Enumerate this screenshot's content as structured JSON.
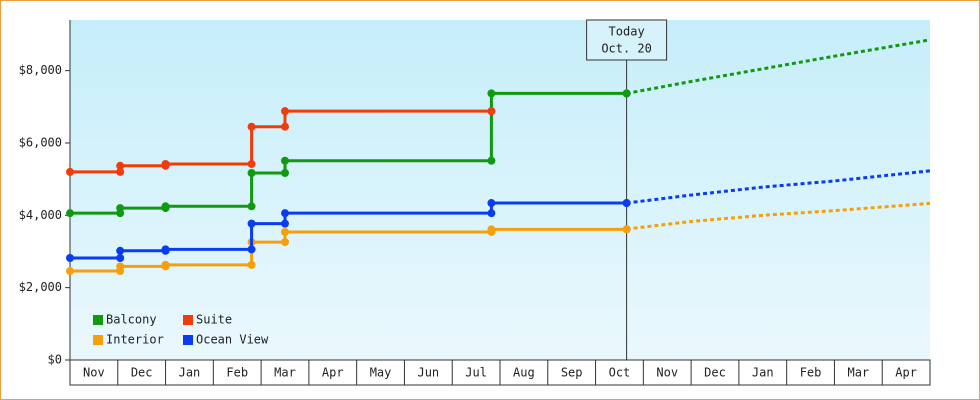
{
  "chart_data": {
    "type": "step",
    "x": [
      0,
      1.05,
      2,
      3.8,
      4.5,
      8.82,
      11.65
    ],
    "series": [
      {
        "name": "Balcony",
        "color": "#119a11",
        "values": [
          4060,
          4200,
          4250,
          5170,
          5510,
          7370,
          7370
        ],
        "projection_values": [
          7370,
          7700,
          8050,
          8400,
          8850
        ]
      },
      {
        "name": "Suite",
        "color": "#f03c0a",
        "values": [
          5200,
          5370,
          5420,
          6450,
          6880,
          6880,
          null
        ]
      },
      {
        "name": "Interior",
        "color": "#f5a00a",
        "values": [
          2460,
          2590,
          2630,
          3260,
          3540,
          3610,
          3620
        ],
        "projection_values": [
          3620,
          3830,
          4000,
          4130,
          4330
        ]
      },
      {
        "name": "Ocean View",
        "color": "#0a3cf0",
        "values": [
          2820,
          3020,
          3060,
          3770,
          4060,
          4340,
          4340
        ],
        "projection_values": [
          4340,
          4560,
          4780,
          4950,
          5230
        ]
      }
    ],
    "projection_x": [
      11.65,
      13,
      14.5,
      16,
      18
    ],
    "xlim": [
      0,
      18
    ],
    "xticks": [
      {
        "value": 0.5,
        "label": "Nov"
      },
      {
        "value": 1.5,
        "label": "Dec"
      },
      {
        "value": 2.5,
        "label": "Jan"
      },
      {
        "value": 3.5,
        "label": "Feb"
      },
      {
        "value": 4.5,
        "label": "Mar"
      },
      {
        "value": 5.5,
        "label": "Apr"
      },
      {
        "value": 6.5,
        "label": "May"
      },
      {
        "value": 7.5,
        "label": "Jun"
      },
      {
        "value": 8.5,
        "label": "Jul"
      },
      {
        "value": 9.5,
        "label": "Aug"
      },
      {
        "value": 10.5,
        "label": "Sep"
      },
      {
        "value": 11.5,
        "label": "Oct"
      },
      {
        "value": 12.5,
        "label": "Nov"
      },
      {
        "value": 13.5,
        "label": "Dec"
      },
      {
        "value": 14.5,
        "label": "Jan"
      },
      {
        "value": 15.5,
        "label": "Feb"
      },
      {
        "value": 16.5,
        "label": "Mar"
      },
      {
        "value": 17.5,
        "label": "Apr"
      }
    ],
    "ylim": [
      0,
      9400
    ],
    "yticks": [
      {
        "value": 0,
        "label": "$0"
      },
      {
        "value": 2000,
        "label": "$2,000"
      },
      {
        "value": 4000,
        "label": "$4,000"
      },
      {
        "value": 6000,
        "label": "$6,000"
      },
      {
        "value": 8000,
        "label": "$8,000"
      }
    ],
    "annotation": {
      "x": 11.65,
      "lines": [
        "Today",
        "Oct. 20"
      ]
    },
    "legend": "bottom-left"
  }
}
